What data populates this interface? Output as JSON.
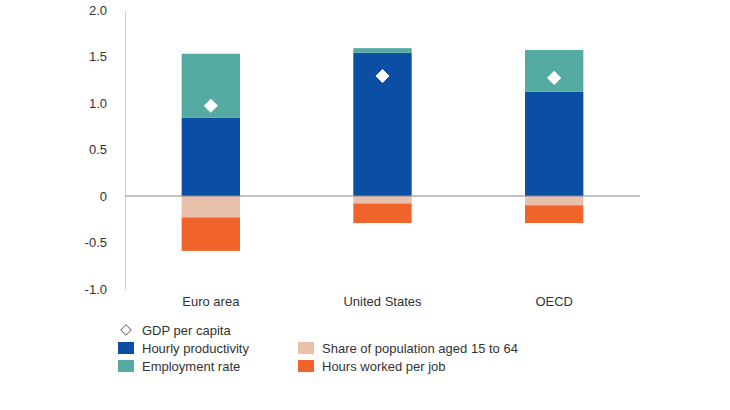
{
  "chart_data": {
    "type": "bar",
    "stacked": true,
    "categories": [
      "Euro area",
      "United States",
      "OECD"
    ],
    "series": [
      {
        "name": "Hourly productivity",
        "color": "#0a4fa3",
        "values": [
          0.84,
          1.54,
          1.12
        ]
      },
      {
        "name": "Employment rate",
        "color": "#55aba2",
        "values": [
          0.69,
          0.05,
          0.45
        ]
      },
      {
        "name": "Share of population aged 15 to 64",
        "color": "#e8c0ac",
        "values": [
          -0.23,
          -0.08,
          -0.1
        ]
      },
      {
        "name": "Hours worked per job",
        "color": "#f0632b",
        "values": [
          -0.36,
          -0.21,
          -0.19
        ]
      },
      {
        "name": "GDP per capita",
        "type": "scatter",
        "marker": "diamond",
        "color": "#ffffff",
        "values": [
          0.97,
          1.29,
          1.27
        ]
      }
    ],
    "ylim": [
      -1,
      2
    ],
    "yticks": [
      {
        "value": -1,
        "label": "-1.0"
      },
      -0.5,
      0,
      0.5,
      {
        "value": 1,
        "label": "1.0"
      },
      1.5,
      {
        "value": 2,
        "label": "2.0"
      }
    ],
    "grid": false,
    "legend": "bottom"
  }
}
